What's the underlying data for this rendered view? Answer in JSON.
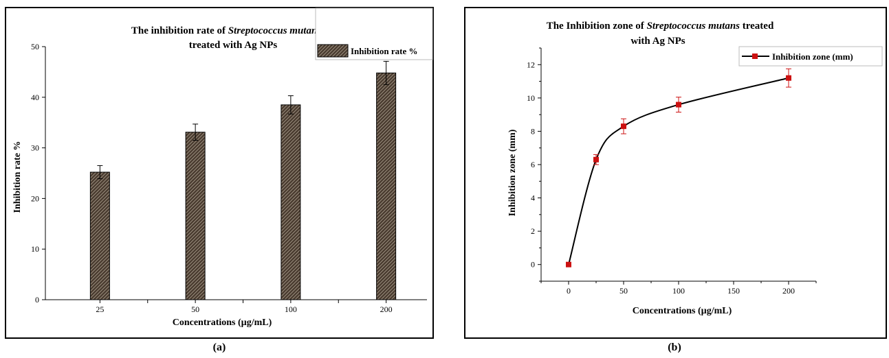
{
  "chart_data": [
    {
      "type": "bar",
      "title_line1_plain": "The inhibition rate of ",
      "title_line1_italic": "Streptococcus mutans",
      "title_line2": "treated with Ag NPs",
      "xlabel": "Concentrations (µg/mL)",
      "ylabel": "Inhibition rate %",
      "categories": [
        "25",
        "50",
        "100",
        "200"
      ],
      "series": [
        {
          "name": "Inhibition rate %",
          "values": [
            25.2,
            33.1,
            38.5,
            44.8
          ],
          "errors": [
            1.3,
            1.6,
            1.8,
            2.3
          ]
        }
      ],
      "ylim": [
        0,
        50
      ],
      "yticks": [
        0,
        10,
        20,
        30,
        40,
        50
      ],
      "legend_position": "top-right",
      "bar_color": "#4a3c30"
    },
    {
      "type": "line",
      "title_line1_plain": "The Inhibition zone of ",
      "title_line1_italic": "Streptococcus mutans",
      "title_line1_suffix": " treated",
      "title_line2": "with Ag NPs",
      "xlabel": "Concentrations (µg/mL)",
      "ylabel": "Inhibition zone (mm)",
      "x": [
        0,
        25,
        50,
        100,
        200
      ],
      "series": [
        {
          "name": "Inhibition zone (mm)",
          "values": [
            0,
            6.3,
            8.3,
            9.6,
            11.2
          ],
          "errors": [
            0,
            0.3,
            0.45,
            0.45,
            0.55
          ]
        }
      ],
      "xlim": [
        -25,
        225
      ],
      "ylim": [
        -1,
        13
      ],
      "xticks": [
        0,
        50,
        100,
        150,
        200
      ],
      "yticks": [
        0,
        2,
        4,
        6,
        8,
        10,
        12
      ],
      "legend_position": "top-right",
      "line_color": "#000000",
      "marker_color": "#cc1111"
    }
  ],
  "captions": {
    "a": "(a)",
    "b": "(b)"
  }
}
